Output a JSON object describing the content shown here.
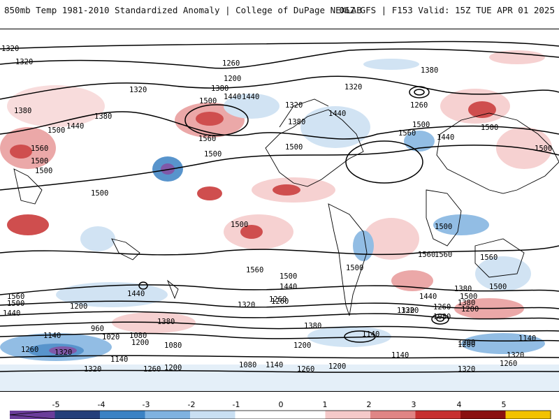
{
  "header": {
    "title": "850mb Temp 1981-2010 Standardized Anomaly | College of DuPage NEXLAB",
    "run": "06Z GFS | F153 Valid: 15Z TUE APR 01 2025"
  },
  "colorbar": {
    "ticks": [
      "-5",
      "-4",
      "-3",
      "-2",
      "-1",
      "0",
      "1",
      "2",
      "3",
      "4",
      "5"
    ],
    "colors": [
      "#6a3d9a",
      "#243f7a",
      "#3b82c4",
      "#7fb2e0",
      "#c9dff2",
      "#ffffff",
      "#ffffff",
      "#f5c9c9",
      "#e08585",
      "#c73030",
      "#8a0f0f",
      "#f2c200"
    ]
  },
  "contours": {
    "labels": [
      "1320",
      "1320",
      "1260",
      "1200",
      "1320",
      "1380",
      "1440",
      "1500",
      "1440",
      "1380",
      "1320",
      "1500",
      "1500",
      "1560",
      "1500",
      "1440",
      "1380",
      "1380",
      "1320",
      "1260",
      "1380",
      "1440",
      "1500",
      "1560",
      "1500",
      "1440",
      "1500",
      "1560",
      "1500",
      "1500",
      "1500",
      "1560",
      "1500",
      "1560",
      "1440",
      "1380",
      "1200",
      "1140",
      "1080",
      "1020",
      "960",
      "1320",
      "1260",
      "1200",
      "1140",
      "1320",
      "1260",
      "1200",
      "1080",
      "1140",
      "1260",
      "1200",
      "1320",
      "1260",
      "1200",
      "1140",
      "1080",
      "1320",
      "1200",
      "1140",
      "1260",
      "1320",
      "1380",
      "1440",
      "1500",
      "1500",
      "1560",
      "1500",
      "1440",
      "1320",
      "1260",
      "1200",
      "1380",
      "1080",
      "1200",
      "1140",
      "1320",
      "1260",
      "1500",
      "1560",
      "1500",
      "1440",
      "1560",
      "1500",
      "1380"
    ]
  }
}
